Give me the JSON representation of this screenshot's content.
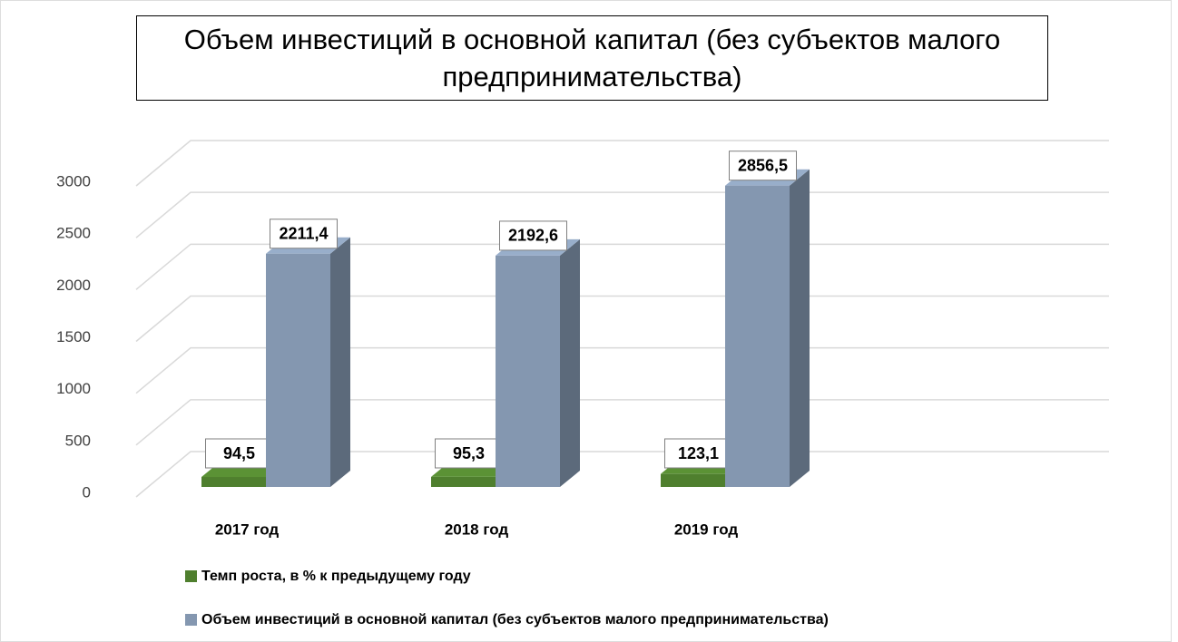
{
  "chart_data": {
    "type": "bar3d",
    "title": "Объем инвестиций в основной капитал (без субъектов малого предпринимательства)",
    "categories": [
      "2017 год",
      "2018 год",
      "2019 год"
    ],
    "series": [
      {
        "name": "Темп роста, в % к предыдущему году",
        "color": "#4f7f2e",
        "values": [
          94.5,
          95.3,
          123.1
        ],
        "value_labels": [
          "94,5",
          "95,3",
          "123,1"
        ]
      },
      {
        "name": "Объем инвестиций в основной капитал (без субъектов малого предпринимательства)",
        "color": "#8497b0",
        "values": [
          2211.4,
          2192.6,
          2856.5
        ],
        "value_labels": [
          "2211,4",
          "2192,6",
          "2856,5"
        ]
      }
    ],
    "ylim": [
      0,
      3000
    ],
    "yticks": [
      0,
      500,
      1000,
      1500,
      2000,
      2500,
      3000
    ],
    "grid": true,
    "legend": "bottom"
  }
}
